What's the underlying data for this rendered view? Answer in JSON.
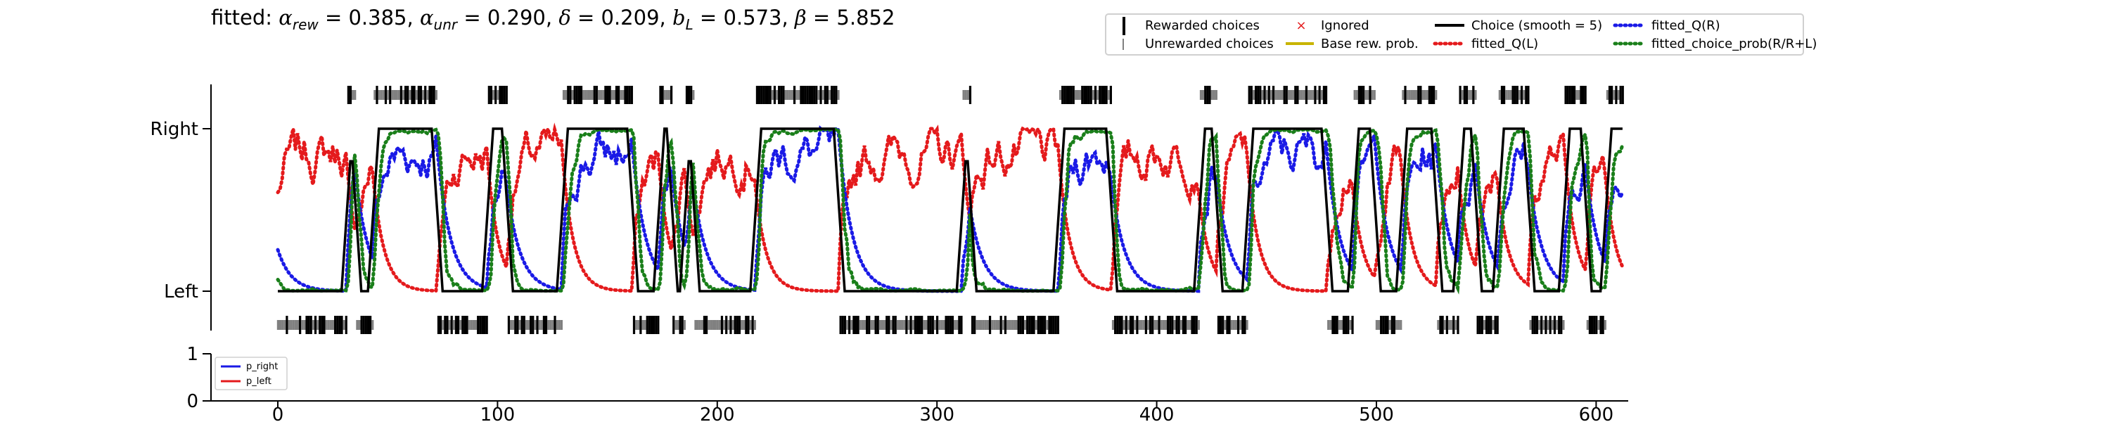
{
  "title": {
    "prefix": "fitted:",
    "params": [
      {
        "symbol": "α",
        "sub": "rew",
        "value": "0.385"
      },
      {
        "symbol": "α",
        "sub": "unr",
        "value": "0.290"
      },
      {
        "symbol": "δ",
        "sub": "",
        "value": "0.209"
      },
      {
        "symbol": "b",
        "sub": "L",
        "value": "0.573"
      },
      {
        "symbol": "β",
        "sub": "",
        "value": "5.852"
      }
    ]
  },
  "legend": {
    "rewarded": "Rewarded choices",
    "unrewarded": "Unrewarded choices",
    "ignored": "Ignored",
    "base": "Base rew. prob.",
    "choice": "Choice (smooth = 5)",
    "qL": "fitted_Q(L)",
    "qR": "fitted_Q(R)",
    "prob": "fitted_choice_prob(R/R+L)"
  },
  "small_legend": {
    "right": "p_right",
    "left": "p_left"
  },
  "colors": {
    "choice": "#000000",
    "qL": "#e41a1c",
    "qR": "#1a1ae6",
    "prob": "#1a7f1a",
    "unrewarded": "#808080",
    "ignored": "#e41a1c",
    "base": "#c8b400"
  },
  "chart_data": {
    "type": "line",
    "panels": [
      {
        "name": "main",
        "y_tick_labels": [
          "Left",
          "Right"
        ],
        "ylim": [
          0,
          1
        ],
        "xlim": [
          0,
          613
        ],
        "trials": 613,
        "segments": [
          {
            "start": 0,
            "end": 32,
            "side": "L",
            "smooth": "0.02"
          },
          {
            "start": 32,
            "end": 36,
            "side": "R",
            "smooth": "0.20"
          },
          {
            "start": 36,
            "end": 44,
            "side": "L",
            "smooth": "0.05"
          },
          {
            "start": 44,
            "end": 73,
            "side": "R",
            "smooth": "1.00"
          },
          {
            "start": 73,
            "end": 96,
            "side": "L",
            "smooth": "0.02"
          },
          {
            "start": 96,
            "end": 105,
            "side": "R",
            "smooth": "1.00"
          },
          {
            "start": 105,
            "end": 130,
            "side": "L",
            "smooth": "0.02"
          },
          {
            "start": 130,
            "end": 162,
            "side": "R",
            "smooth": "1.00"
          },
          {
            "start": 162,
            "end": 174,
            "side": "L",
            "smooth": "0.02"
          },
          {
            "start": 174,
            "end": 180,
            "side": "R",
            "smooth": "0.60"
          },
          {
            "start": 180,
            "end": 186,
            "side": "L",
            "smooth": "0.02"
          },
          {
            "start": 186,
            "end": 190,
            "side": "R",
            "smooth": "0.80"
          },
          {
            "start": 190,
            "end": 218,
            "side": "L",
            "smooth": "0.02"
          },
          {
            "start": 218,
            "end": 256,
            "side": "R",
            "smooth": "1.00"
          },
          {
            "start": 256,
            "end": 312,
            "side": "L",
            "smooth": "0.00"
          },
          {
            "start": 312,
            "end": 316,
            "side": "R",
            "smooth": "0.80"
          },
          {
            "start": 316,
            "end": 356,
            "side": "L",
            "smooth": "0.00"
          },
          {
            "start": 356,
            "end": 380,
            "side": "R",
            "smooth": "1.00"
          },
          {
            "start": 380,
            "end": 420,
            "side": "L",
            "smooth": "0.00"
          },
          {
            "start": 420,
            "end": 428,
            "side": "R",
            "smooth": "0.40"
          },
          {
            "start": 428,
            "end": 442,
            "side": "L",
            "smooth": "0.05"
          },
          {
            "start": 442,
            "end": 478,
            "side": "R",
            "smooth": "0.95"
          },
          {
            "start": 478,
            "end": 490,
            "side": "L",
            "smooth": "0.20"
          },
          {
            "start": 490,
            "end": 500,
            "side": "R",
            "smooth": "0.70"
          },
          {
            "start": 500,
            "end": 512,
            "side": "L",
            "smooth": "0.10"
          },
          {
            "start": 512,
            "end": 528,
            "side": "R",
            "smooth": "0.70"
          },
          {
            "start": 528,
            "end": 538,
            "side": "L",
            "smooth": "0.10"
          },
          {
            "start": 538,
            "end": 546,
            "side": "R",
            "smooth": "0.40"
          },
          {
            "start": 546,
            "end": 556,
            "side": "L",
            "smooth": "0.20"
          },
          {
            "start": 556,
            "end": 570,
            "side": "R",
            "smooth": "1.00"
          },
          {
            "start": 570,
            "end": 586,
            "side": "L",
            "smooth": "0.02"
          },
          {
            "start": 586,
            "end": 596,
            "side": "R",
            "smooth": "0.20"
          },
          {
            "start": 596,
            "end": 605,
            "side": "L",
            "smooth": "0.02"
          },
          {
            "start": 605,
            "end": 613,
            "side": "R",
            "smooth": "1.00"
          }
        ],
        "series": [
          {
            "key": "choice",
            "label_key": "choice",
            "style": "solid"
          },
          {
            "key": "qL",
            "label_key": "qL",
            "style": "dotted"
          },
          {
            "key": "qR",
            "label_key": "qR",
            "style": "dotted"
          },
          {
            "key": "prob",
            "label_key": "prob",
            "style": "dotted"
          }
        ]
      },
      {
        "name": "probability",
        "ylim": [
          0,
          1
        ],
        "y_ticks": [
          "0",
          "1"
        ],
        "series": [
          {
            "name": "p_right",
            "values": []
          },
          {
            "name": "p_left",
            "values": []
          }
        ]
      }
    ],
    "x_ticks": [
      0,
      100,
      200,
      300,
      400,
      500,
      600
    ]
  }
}
